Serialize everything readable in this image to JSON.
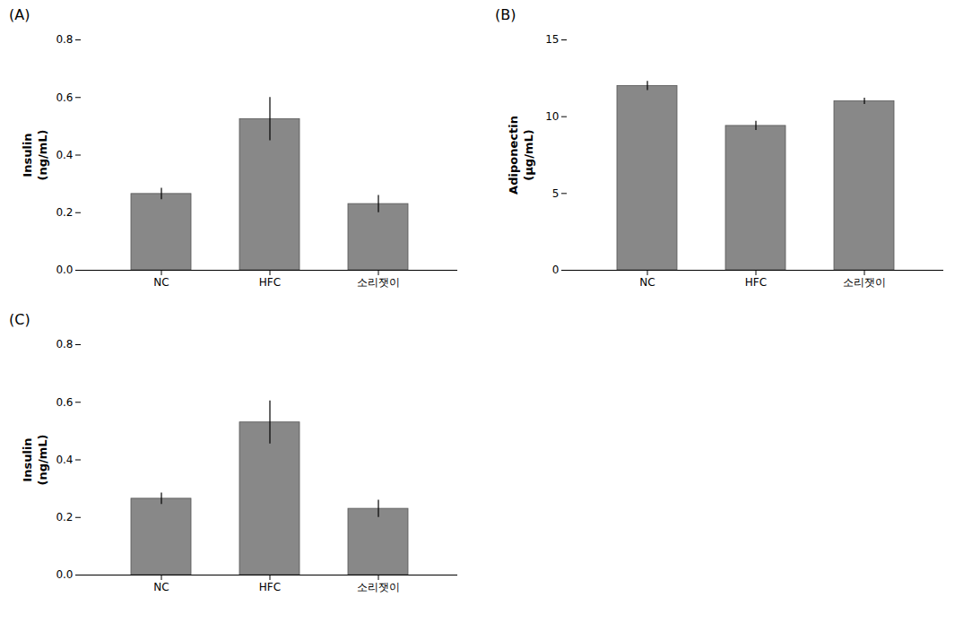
{
  "chart_data": [
    {
      "type": "bar",
      "title": "(A)",
      "categories": [
        "NC",
        "HFC",
        "소리잿이"
      ],
      "values": [
        0.265,
        0.525,
        0.23
      ],
      "errors": [
        0.02,
        0.075,
        0.03
      ],
      "ylabel": "Insulin\n(ng/mL)",
      "ylim": [
        0,
        0.8
      ],
      "yticks": [
        {
          "value": 0,
          "label": "0.0"
        },
        0.2,
        0.4,
        0.6,
        0.8
      ],
      "color": "#888888",
      "grid": false
    },
    {
      "type": "bar",
      "title": "(B)",
      "categories": [
        "NC",
        "HFC",
        "소리잿이"
      ],
      "values": [
        12.0,
        9.4,
        11.0
      ],
      "errors": [
        0.3,
        0.3,
        0.2
      ],
      "ylabel": "Adiponectin\n(μg/mL)",
      "ylim": [
        0,
        15
      ],
      "yticks": [
        0,
        5,
        10,
        15
      ],
      "color": "#888888",
      "grid": false
    },
    {
      "type": "bar",
      "title": "(C)",
      "categories": [
        "NC",
        "HFC",
        "소리잿이"
      ],
      "values": [
        0.265,
        0.53,
        0.23
      ],
      "errors": [
        0.02,
        0.075,
        0.03
      ],
      "ylabel": "Insulin\n(ng/mL)",
      "ylim": [
        0,
        0.8
      ],
      "yticks": [
        {
          "value": 0,
          "label": "0.0"
        },
        0.2,
        0.4,
        0.6,
        0.8
      ],
      "color": "#888888",
      "grid": false
    }
  ]
}
